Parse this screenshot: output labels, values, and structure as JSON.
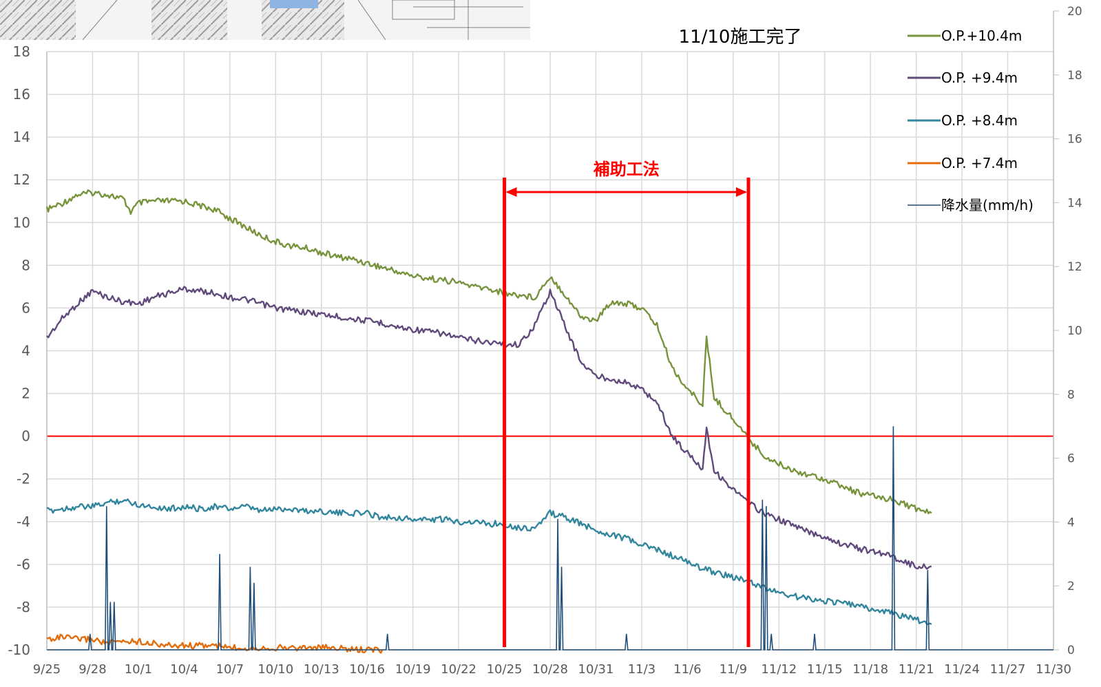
{
  "chart_data": {
    "type": "line",
    "title": "",
    "xlabel": "",
    "ylabel": "",
    "y2label": "",
    "xlim": [
      "9/25",
      "11/30"
    ],
    "ylim": [
      -10,
      18
    ],
    "y2lim": [
      0,
      20
    ],
    "grid": true,
    "legend_position": "top-right",
    "x_ticks": [
      "9/25",
      "9/28",
      "10/1",
      "10/4",
      "10/7",
      "10/10",
      "10/13",
      "10/16",
      "10/19",
      "10/22",
      "10/25",
      "10/28",
      "10/31",
      "11/3",
      "11/6",
      "11/9",
      "11/12",
      "11/15",
      "11/18",
      "11/21",
      "11/24",
      "11/27",
      "11/30"
    ],
    "y_ticks": [
      18,
      16,
      14,
      12,
      10,
      8,
      6,
      4,
      2,
      0,
      -2,
      -4,
      -6,
      -8,
      -10
    ],
    "y2_ticks": [
      20,
      18,
      16,
      14,
      12,
      10,
      8,
      6,
      4,
      2,
      0
    ],
    "series": [
      {
        "name": "O.P.+10.4m",
        "axis": "left",
        "color": "#77933c",
        "points": [
          [
            "9/25",
            10.6
          ],
          [
            "9/26",
            10.9
          ],
          [
            "9/27",
            11.3
          ],
          [
            "9/28",
            11.4
          ],
          [
            "9/29",
            11.3
          ],
          [
            "9/30",
            11.1
          ],
          [
            "9/30 12:00",
            10.5
          ],
          [
            "10/1",
            10.9
          ],
          [
            "10/2",
            11.0
          ],
          [
            "10/3",
            11.0
          ],
          [
            "10/4",
            11.0
          ],
          [
            "10/5",
            10.8
          ],
          [
            "10/6",
            10.6
          ],
          [
            "10/7",
            10.2
          ],
          [
            "10/8",
            9.8
          ],
          [
            "10/9",
            9.4
          ],
          [
            "10/10",
            9.1
          ],
          [
            "10/11",
            8.9
          ],
          [
            "10/12",
            8.8
          ],
          [
            "10/13",
            8.6
          ],
          [
            "10/14",
            8.4
          ],
          [
            "10/15",
            8.3
          ],
          [
            "10/16",
            8.1
          ],
          [
            "10/17",
            7.9
          ],
          [
            "10/18",
            7.7
          ],
          [
            "10/19",
            7.5
          ],
          [
            "10/20",
            7.4
          ],
          [
            "10/21",
            7.3
          ],
          [
            "10/22",
            7.2
          ],
          [
            "10/23",
            7.0
          ],
          [
            "10/24",
            6.9
          ],
          [
            "10/25",
            6.7
          ],
          [
            "10/26",
            6.6
          ],
          [
            "10/27",
            6.5
          ],
          [
            "10/28",
            7.5
          ],
          [
            "10/29",
            6.6
          ],
          [
            "10/30",
            5.6
          ],
          [
            "10/31",
            5.4
          ],
          [
            "11/1",
            6.3
          ],
          [
            "11/2",
            6.2
          ],
          [
            "11/3",
            6.0
          ],
          [
            "11/4",
            5.2
          ],
          [
            "11/5",
            3.2
          ],
          [
            "11/6",
            2.2
          ],
          [
            "11/7",
            1.5
          ],
          [
            "11/7 06:00",
            4.6
          ],
          [
            "11/7 18:00",
            1.8
          ],
          [
            "11/8",
            1.6
          ],
          [
            "11/9",
            0.8
          ],
          [
            "11/10",
            -0.1
          ],
          [
            "11/11",
            -0.9
          ],
          [
            "11/12",
            -1.3
          ],
          [
            "11/13",
            -1.6
          ],
          [
            "11/14",
            -1.8
          ],
          [
            "11/15",
            -2.0
          ],
          [
            "11/16",
            -2.3
          ],
          [
            "11/17",
            -2.6
          ],
          [
            "11/18",
            -2.8
          ],
          [
            "11/19",
            -2.9
          ],
          [
            "11/20",
            -3.1
          ],
          [
            "11/21",
            -3.4
          ],
          [
            "11/22",
            -3.6
          ]
        ]
      },
      {
        "name": "O.P. +9.4m",
        "axis": "left",
        "color": "#604a7b",
        "points": [
          [
            "9/25",
            4.6
          ],
          [
            "9/26",
            5.5
          ],
          [
            "9/27",
            6.2
          ],
          [
            "9/28",
            6.8
          ],
          [
            "9/29",
            6.5
          ],
          [
            "9/30",
            6.3
          ],
          [
            "10/1",
            6.2
          ],
          [
            "10/2",
            6.5
          ],
          [
            "10/3",
            6.7
          ],
          [
            "10/4",
            6.9
          ],
          [
            "10/5",
            6.8
          ],
          [
            "10/6",
            6.7
          ],
          [
            "10/7",
            6.5
          ],
          [
            "10/8",
            6.4
          ],
          [
            "10/9",
            6.2
          ],
          [
            "10/10",
            6.0
          ],
          [
            "10/11",
            5.9
          ],
          [
            "10/12",
            5.8
          ],
          [
            "10/13",
            5.7
          ],
          [
            "10/14",
            5.6
          ],
          [
            "10/15",
            5.5
          ],
          [
            "10/16",
            5.4
          ],
          [
            "10/17",
            5.3
          ],
          [
            "10/18",
            5.1
          ],
          [
            "10/19",
            5.0
          ],
          [
            "10/20",
            4.9
          ],
          [
            "10/21",
            4.8
          ],
          [
            "10/22",
            4.6
          ],
          [
            "10/23",
            4.5
          ],
          [
            "10/24",
            4.4
          ],
          [
            "10/25",
            4.3
          ],
          [
            "10/26",
            4.3
          ],
          [
            "10/27",
            5.2
          ],
          [
            "10/28",
            6.8
          ],
          [
            "10/29",
            5.1
          ],
          [
            "10/30",
            3.5
          ],
          [
            "10/31",
            2.8
          ],
          [
            "11/1",
            2.7
          ],
          [
            "11/2",
            2.5
          ],
          [
            "11/3",
            2.2
          ],
          [
            "11/4",
            1.6
          ],
          [
            "11/5",
            0.0
          ],
          [
            "11/6",
            -0.8
          ],
          [
            "11/7",
            -1.5
          ],
          [
            "11/7 06:00",
            0.4
          ],
          [
            "11/7 18:00",
            -1.6
          ],
          [
            "11/8",
            -1.8
          ],
          [
            "11/9",
            -2.5
          ],
          [
            "11/10",
            -3.1
          ],
          [
            "11/11",
            -3.6
          ],
          [
            "11/12",
            -3.9
          ],
          [
            "11/13",
            -4.2
          ],
          [
            "11/14",
            -4.5
          ],
          [
            "11/15",
            -4.7
          ],
          [
            "11/16",
            -5.0
          ],
          [
            "11/17",
            -5.2
          ],
          [
            "11/18",
            -5.4
          ],
          [
            "11/19",
            -5.5
          ],
          [
            "11/20",
            -5.8
          ],
          [
            "11/21",
            -6.1
          ],
          [
            "11/22",
            -6.1
          ]
        ]
      },
      {
        "name": "O.P. +8.4m",
        "axis": "left",
        "color": "#31859c",
        "points": [
          [
            "9/25",
            -3.5
          ],
          [
            "9/26",
            -3.4
          ],
          [
            "9/27",
            -3.3
          ],
          [
            "9/28",
            -3.3
          ],
          [
            "9/29",
            -3.1
          ],
          [
            "9/30",
            -3.0
          ],
          [
            "10/1",
            -3.2
          ],
          [
            "10/2",
            -3.3
          ],
          [
            "10/3",
            -3.4
          ],
          [
            "10/4",
            -3.3
          ],
          [
            "10/5",
            -3.4
          ],
          [
            "10/6",
            -3.3
          ],
          [
            "10/7",
            -3.4
          ],
          [
            "10/8",
            -3.3
          ],
          [
            "10/9",
            -3.5
          ],
          [
            "10/10",
            -3.4
          ],
          [
            "10/11",
            -3.4
          ],
          [
            "10/12",
            -3.5
          ],
          [
            "10/13",
            -3.5
          ],
          [
            "10/14",
            -3.6
          ],
          [
            "10/15",
            -3.6
          ],
          [
            "10/16",
            -3.6
          ],
          [
            "10/17",
            -3.8
          ],
          [
            "10/18",
            -3.8
          ],
          [
            "10/19",
            -3.9
          ],
          [
            "10/20",
            -3.9
          ],
          [
            "10/21",
            -3.9
          ],
          [
            "10/22",
            -4.0
          ],
          [
            "10/23",
            -4.0
          ],
          [
            "10/24",
            -4.1
          ],
          [
            "10/25",
            -4.1
          ],
          [
            "10/26",
            -4.3
          ],
          [
            "10/27",
            -4.3
          ],
          [
            "10/28",
            -3.6
          ],
          [
            "10/29",
            -3.8
          ],
          [
            "10/30",
            -4.1
          ],
          [
            "10/31",
            -4.4
          ],
          [
            "11/1",
            -4.6
          ],
          [
            "11/2",
            -4.8
          ],
          [
            "11/3",
            -5.1
          ],
          [
            "11/4",
            -5.3
          ],
          [
            "11/5",
            -5.6
          ],
          [
            "11/6",
            -5.9
          ],
          [
            "11/7",
            -6.2
          ],
          [
            "11/8",
            -6.4
          ],
          [
            "11/9",
            -6.6
          ],
          [
            "11/10",
            -6.8
          ],
          [
            "11/11",
            -7.1
          ],
          [
            "11/12",
            -7.3
          ],
          [
            "11/13",
            -7.5
          ],
          [
            "11/14",
            -7.6
          ],
          [
            "11/15",
            -7.7
          ],
          [
            "11/16",
            -7.8
          ],
          [
            "11/17",
            -7.9
          ],
          [
            "11/18",
            -8.1
          ],
          [
            "11/19",
            -8.2
          ],
          [
            "11/20",
            -8.4
          ],
          [
            "11/21",
            -8.6
          ],
          [
            "11/22",
            -8.8
          ]
        ]
      },
      {
        "name": "O.P. +7.4m",
        "axis": "left",
        "color": "#e46c0a",
        "points": [
          [
            "9/25",
            -9.5
          ],
          [
            "9/26",
            -9.4
          ],
          [
            "9/27",
            -9.5
          ],
          [
            "9/28",
            -9.5
          ],
          [
            "9/29",
            -9.7
          ],
          [
            "9/30",
            -9.6
          ],
          [
            "10/1",
            -9.6
          ],
          [
            "10/2",
            -9.7
          ],
          [
            "10/3",
            -9.8
          ],
          [
            "10/4",
            -9.8
          ],
          [
            "10/5",
            -9.8
          ],
          [
            "10/6",
            -9.8
          ],
          [
            "10/7",
            -9.9
          ],
          [
            "10/8",
            -9.9
          ],
          [
            "10/9",
            -9.9
          ],
          [
            "10/10",
            -9.9
          ],
          [
            "10/11",
            -9.9
          ],
          [
            "10/12",
            -9.9
          ],
          [
            "10/13",
            -9.9
          ],
          [
            "10/14",
            -9.9
          ],
          [
            "10/15",
            -10.0
          ],
          [
            "10/16",
            -10.0
          ],
          [
            "10/17",
            -10.0
          ]
        ]
      },
      {
        "name": "降水量(mm/h)",
        "axis": "right",
        "color": "#1f4e79",
        "points": [
          [
            "9/27 20:00",
            0.5
          ],
          [
            "9/28 22:00",
            4.5
          ],
          [
            "9/29 04:00",
            1.5
          ],
          [
            "9/29 10:00",
            1.5
          ],
          [
            "10/6 08:00",
            3.0
          ],
          [
            "10/8 08:00",
            2.6
          ],
          [
            "10/8 14:00",
            2.1
          ],
          [
            "10/17 08:00",
            0.5
          ],
          [
            "10/28 12:00",
            4.1
          ],
          [
            "10/28 18:00",
            2.6
          ],
          [
            "11/2",
            0.5
          ],
          [
            "11/10 22:00",
            4.7
          ],
          [
            "11/11 04:00",
            4.5
          ],
          [
            "11/11 12:00",
            0.5
          ],
          [
            "11/14 08:00",
            0.5
          ],
          [
            "11/19 12:00",
            7.0
          ],
          [
            "11/21 18:00",
            2.5
          ]
        ]
      }
    ],
    "annotations": {
      "completion_note": "11/10施工完了",
      "method_label": "補助工法",
      "method_start": "10/25",
      "method_end": "11/10",
      "zero_line_color": "#ff0000",
      "marker_color": "#ff0000"
    }
  }
}
